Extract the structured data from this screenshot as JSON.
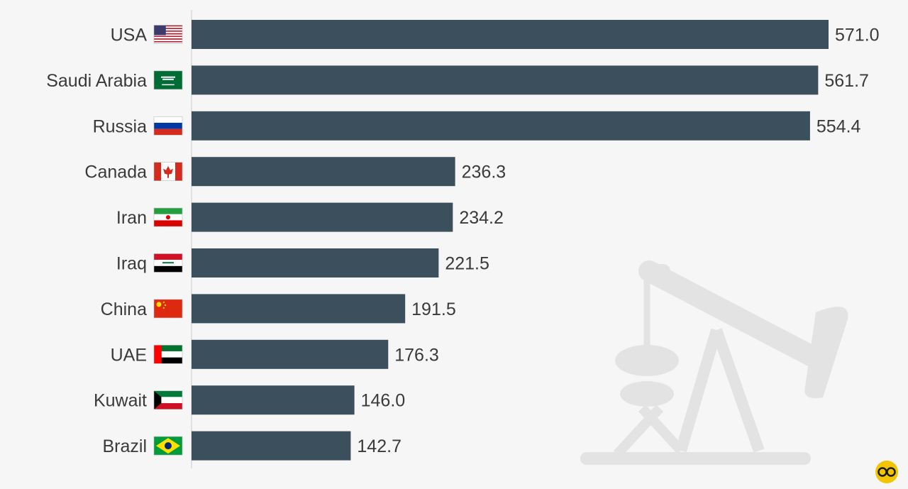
{
  "chart_data": {
    "type": "bar",
    "orientation": "horizontal",
    "categories": [
      "USA",
      "Saudi Arabia",
      "Russia",
      "Canada",
      "Iran",
      "Iraq",
      "China",
      "UAE",
      "Kuwait",
      "Brazil"
    ],
    "values": [
      571.0,
      561.7,
      554.4,
      236.3,
      234.2,
      221.5,
      191.5,
      176.3,
      146.0,
      142.7
    ],
    "value_labels": [
      "571.0",
      "561.7",
      "554.4",
      "236.3",
      "234.2",
      "221.5",
      "191.5",
      "176.3",
      "146.0",
      "142.7"
    ],
    "flags": [
      "usa-flag",
      "saudi-arabia-flag",
      "russia-flag",
      "canada-flag",
      "iran-flag",
      "iraq-flag",
      "china-flag",
      "uae-flag",
      "kuwait-flag",
      "brazil-flag"
    ],
    "title": "",
    "xlabel": "",
    "ylabel": "",
    "xlim": [
      0,
      571.0
    ],
    "grid": false,
    "legend": "none"
  },
  "colors": {
    "bar": "#3c4f5c",
    "background": "#f6f6f6",
    "text": "#3a3a3a",
    "watermark": "#e4e4e4",
    "logo": "#f2c500"
  },
  "icons": {
    "background": "oil-pump-jack-icon",
    "logo": "statista-logo-icon"
  }
}
